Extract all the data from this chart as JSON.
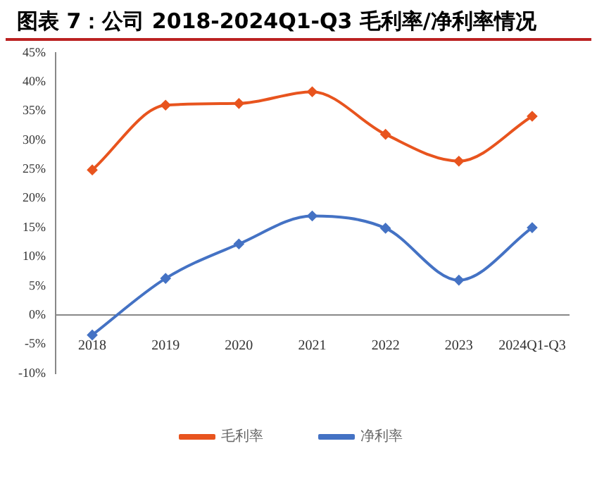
{
  "chart_data": {
    "type": "line",
    "title": "图表 7：公司 2018-2024Q1-Q3 毛利率/净利率情况",
    "categories": [
      "2018",
      "2019",
      "2020",
      "2021",
      "2022",
      "2023",
      "2024Q1-Q3"
    ],
    "series": [
      {
        "name": "毛利率",
        "color": "#e8541e",
        "values": [
          24.9,
          36.0,
          36.3,
          38.3,
          31.0,
          26.4,
          34.1
        ]
      },
      {
        "name": "净利率",
        "color": "#4472c4",
        "values": [
          -3.4,
          6.3,
          12.2,
          17.0,
          14.9,
          6.0,
          15.0
        ]
      }
    ],
    "ylim": [
      -10,
      45
    ],
    "yticks": [
      {
        "value": -10,
        "label": "-10%"
      },
      {
        "value": -5,
        "label": "-5%"
      },
      {
        "value": 0,
        "label": "0%"
      },
      {
        "value": 5,
        "label": "5%"
      },
      {
        "value": 10,
        "label": "10%"
      },
      {
        "value": 15,
        "label": "15%"
      },
      {
        "value": 20,
        "label": "20%"
      },
      {
        "value": 25,
        "label": "25%"
      },
      {
        "value": 30,
        "label": "30%"
      },
      {
        "value": 35,
        "label": "35%"
      },
      {
        "value": 40,
        "label": "40%"
      },
      {
        "value": 45,
        "label": "45%"
      }
    ],
    "grid": false,
    "legend": "bottom",
    "marker": "diamond",
    "line_style": "solid"
  }
}
